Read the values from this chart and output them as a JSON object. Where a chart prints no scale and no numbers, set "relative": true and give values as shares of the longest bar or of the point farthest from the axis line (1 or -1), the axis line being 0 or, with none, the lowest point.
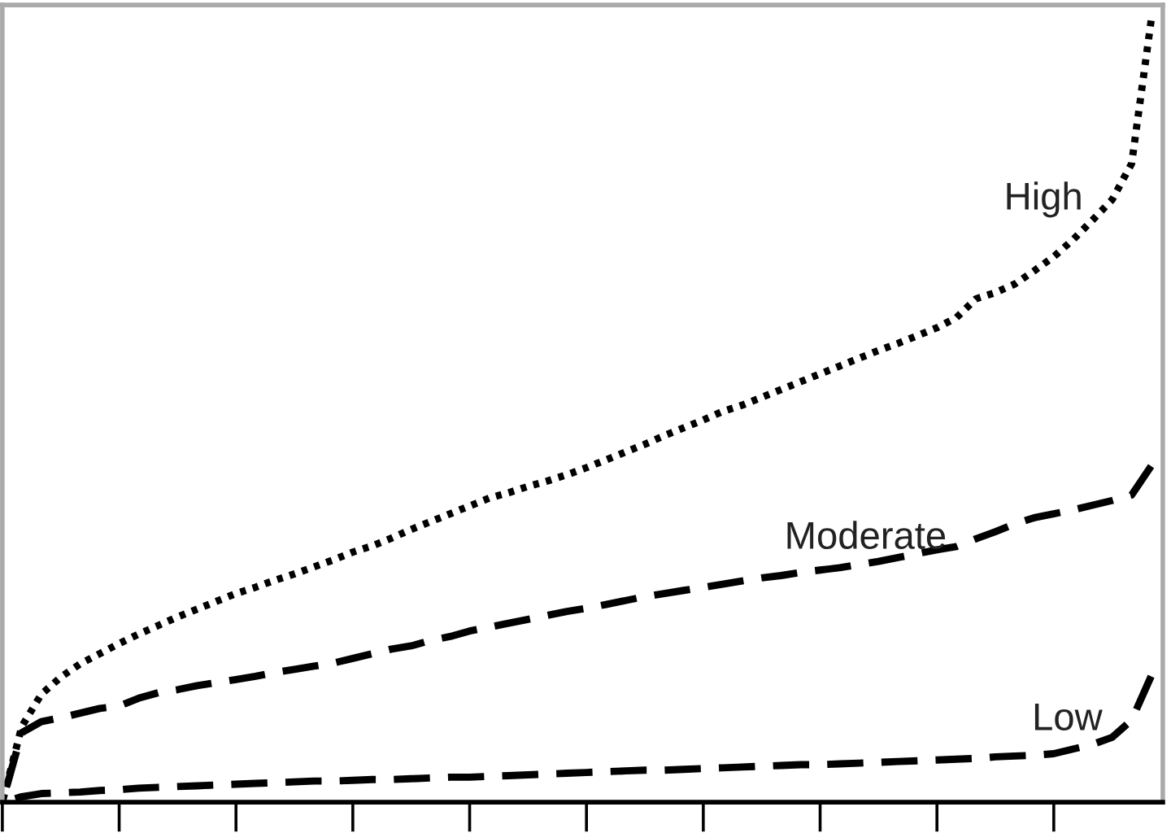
{
  "chart_data": {
    "type": "line",
    "relative": true,
    "categories": [
      null,
      null,
      null,
      null,
      null,
      null,
      null,
      null,
      null,
      null,
      null,
      null,
      null,
      null,
      null,
      null,
      null,
      null,
      null,
      null,
      null,
      null,
      null,
      null,
      null,
      null,
      null,
      null,
      null,
      null,
      null,
      null,
      null,
      null,
      null,
      null,
      null,
      null,
      null,
      null,
      null,
      null,
      null,
      null,
      null,
      null,
      null,
      null,
      null,
      null,
      null,
      null,
      null,
      null,
      null,
      null,
      null,
      null,
      null,
      null
    ],
    "grid": false,
    "legend": false,
    "marker": "none",
    "series": [
      {
        "name": "High",
        "color": "#000000",
        "line_style": "dotted",
        "values": [
          0,
          0.097,
          0.138,
          0.16,
          0.177,
          0.19,
          0.203,
          0.215,
          0.226,
          0.237,
          0.247,
          0.257,
          0.267,
          0.275,
          0.284,
          0.292,
          0.301,
          0.31,
          0.32,
          0.328,
          0.338,
          0.349,
          0.359,
          0.369,
          0.379,
          0.389,
          0.396,
          0.404,
          0.411,
          0.419,
          0.428,
          0.438,
          0.448,
          0.458,
          0.469,
          0.479,
          0.489,
          0.5,
          0.508,
          0.518,
          0.528,
          0.538,
          0.548,
          0.558,
          0.568,
          0.578,
          0.587,
          0.597,
          0.607,
          0.62,
          0.644,
          0.652,
          0.663,
          0.68,
          0.698,
          0.72,
          0.745,
          0.771,
          0.817,
          1
        ]
      },
      {
        "name": "Moderate",
        "color": "#000000",
        "line_style": "dashed",
        "values": [
          0,
          0.089,
          0.103,
          0.108,
          0.114,
          0.12,
          0.123,
          0.133,
          0.14,
          0.144,
          0.149,
          0.153,
          0.157,
          0.161,
          0.166,
          0.17,
          0.174,
          0.178,
          0.184,
          0.19,
          0.196,
          0.2,
          0.207,
          0.212,
          0.219,
          0.224,
          0.229,
          0.234,
          0.239,
          0.244,
          0.248,
          0.253,
          0.258,
          0.263,
          0.267,
          0.271,
          0.275,
          0.279,
          0.283,
          0.287,
          0.29,
          0.294,
          0.297,
          0.3,
          0.304,
          0.308,
          0.313,
          0.318,
          0.323,
          0.327,
          0.337,
          0.346,
          0.356,
          0.364,
          0.369,
          0.374,
          0.38,
          0.386,
          0.393,
          0.43
        ]
      },
      {
        "name": "Low",
        "color": "#000000",
        "line_style": "dashed",
        "values": [
          0,
          0.007,
          0.011,
          0.012,
          0.013,
          0.015,
          0.016,
          0.018,
          0.019,
          0.02,
          0.021,
          0.022,
          0.023,
          0.024,
          0.025,
          0.026,
          0.027,
          0.027,
          0.028,
          0.029,
          0.029,
          0.03,
          0.031,
          0.032,
          0.032,
          0.033,
          0.034,
          0.035,
          0.036,
          0.037,
          0.038,
          0.039,
          0.04,
          0.041,
          0.041,
          0.042,
          0.043,
          0.044,
          0.045,
          0.046,
          0.047,
          0.048,
          0.048,
          0.049,
          0.05,
          0.051,
          0.052,
          0.053,
          0.054,
          0.055,
          0.056,
          0.058,
          0.059,
          0.06,
          0.062,
          0.068,
          0.074,
          0.083,
          0.105,
          0.161
        ]
      }
    ]
  }
}
